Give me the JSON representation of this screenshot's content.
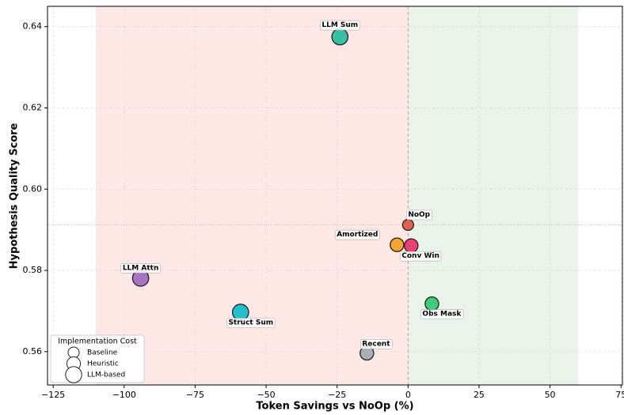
{
  "chart_data": {
    "type": "scatter",
    "xlabel": "Token Savings vs NoOp (%)",
    "ylabel": "Hypothesis Quality Score",
    "xlim": [
      -127,
      75.5
    ],
    "ylim": [
      0.5518,
      0.645
    ],
    "xticks": [
      {
        "value": -125,
        "label": "−125"
      },
      {
        "value": -100,
        "label": "−100"
      },
      {
        "value": -75,
        "label": "−75"
      },
      {
        "value": -50,
        "label": "−50"
      },
      {
        "value": -25,
        "label": "−25"
      },
      0,
      25,
      50,
      75
    ],
    "yticks": [
      0.56,
      0.58,
      {
        "value": 0.6,
        "label": "0.60"
      },
      0.62,
      0.64
    ],
    "grid": true,
    "shaded_regions": [
      {
        "xlim": [
          -110,
          0
        ],
        "color": "#fde8e6"
      },
      {
        "xlim": [
          0,
          60
        ],
        "color": "#e9f3e9"
      }
    ],
    "hline": 0.5912,
    "vline": 0,
    "points": [
      {
        "label": "LLM Sum",
        "x": -24,
        "y": 0.6375,
        "cost": "LLM-based",
        "color": "#3bbfa2"
      },
      {
        "label": "NoOp",
        "x": 0,
        "y": 0.5912,
        "cost": "Baseline",
        "color": "#e0604e"
      },
      {
        "label": "Amortized",
        "x": -3.9,
        "y": 0.5863,
        "cost": "Heuristic",
        "color": "#f5a430"
      },
      {
        "label": "Conv Win",
        "x": 1.1,
        "y": 0.5861,
        "cost": "Heuristic",
        "color": "#ec3f74"
      },
      {
        "label": "LLM Attn",
        "x": -94.2,
        "y": 0.5781,
        "cost": "LLM-based",
        "color": "#a574c2"
      },
      {
        "label": "Struct Sum",
        "x": -59,
        "y": 0.5697,
        "cost": "LLM-based",
        "color": "#22c0cf"
      },
      {
        "label": "Obs Mask",
        "x": 8.4,
        "y": 0.5718,
        "cost": "Heuristic",
        "color": "#3fcc78"
      },
      {
        "label": "Recent",
        "x": -14.5,
        "y": 0.5596,
        "cost": "Heuristic",
        "color": "#a9b0b2"
      }
    ],
    "size_legend": {
      "title": "Implementation Cost",
      "items": [
        "Baseline",
        "Heuristic",
        "LLM-based"
      ],
      "corner": "lower left"
    }
  }
}
